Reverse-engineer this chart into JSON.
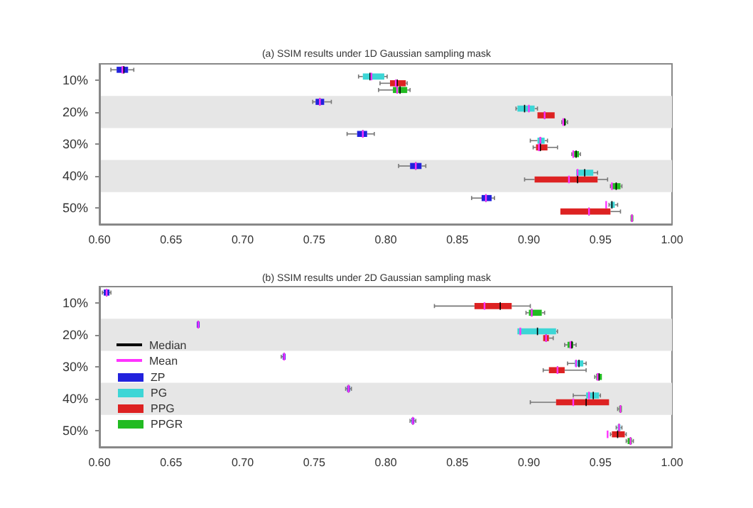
{
  "chart_data": [
    {
      "type": "box",
      "title": "(a) SSIM results under 1D Gaussian sampling mask",
      "orientation": "horizontal",
      "categories": [
        "10%",
        "20%",
        "30%",
        "40%",
        "50%"
      ],
      "xlim": [
        0.6,
        1.0
      ],
      "xticks": [
        {
          "value": 0.6,
          "label": "0.60"
        },
        {
          "value": 0.65,
          "label": "0.65"
        },
        {
          "value": 0.7,
          "label": "0.70"
        },
        {
          "value": 0.75,
          "label": "0.75"
        },
        {
          "value": 0.8,
          "label": "0.80"
        },
        {
          "value": 0.85,
          "label": "0.85"
        },
        {
          "value": 0.9,
          "label": "0.90"
        },
        {
          "value": 0.95,
          "label": "0.95"
        },
        {
          "value": 1.0,
          "label": "1.00"
        }
      ],
      "grid": false,
      "legend": false,
      "bands": [
        {
          "axis": "y",
          "from": "20%",
          "to": "20%",
          "color": "#e6e6e6"
        },
        {
          "axis": "y",
          "from": "40%",
          "to": "40%",
          "color": "#e6e6e6"
        }
      ],
      "series": [
        {
          "color": "#2222dd",
          "boxes": [
            {
              "low": 0.608,
              "q1": 0.612,
              "median": 0.617,
              "q3": 0.62,
              "high": 0.624,
              "mean": 0.616
            },
            {
              "low": 0.749,
              "q1": 0.751,
              "median": 0.754,
              "q3": 0.757,
              "high": 0.762,
              "mean": 0.754
            },
            {
              "low": 0.773,
              "q1": 0.78,
              "median": 0.784,
              "q3": 0.787,
              "high": 0.792,
              "mean": 0.784
            },
            {
              "low": 0.809,
              "q1": 0.817,
              "median": 0.821,
              "q3": 0.825,
              "high": 0.828,
              "mean": 0.821
            },
            {
              "low": 0.86,
              "q1": 0.867,
              "median": 0.87,
              "q3": 0.874,
              "high": 0.876,
              "mean": 0.87
            }
          ]
        },
        {
          "color": "#3dd6d6",
          "boxes": [
            {
              "low": 0.781,
              "q1": 0.784,
              "median": 0.789,
              "q3": 0.799,
              "high": 0.801,
              "mean": 0.79
            },
            {
              "low": 0.891,
              "q1": 0.892,
              "median": 0.897,
              "q3": 0.904,
              "high": 0.906,
              "mean": 0.9
            },
            {
              "low": 0.901,
              "q1": 0.906,
              "median": 0.908,
              "q3": 0.911,
              "high": 0.913,
              "mean": 0.908
            },
            {
              "low": 0.933,
              "q1": 0.933,
              "median": 0.939,
              "q3": 0.945,
              "high": 0.948,
              "mean": 0.934
            },
            {
              "low": 0.956,
              "q1": 0.957,
              "median": 0.958,
              "q3": 0.96,
              "high": 0.962,
              "mean": 0.954
            }
          ]
        },
        {
          "color": "#dd2222",
          "boxes": [
            {
              "low": 0.796,
              "q1": 0.803,
              "median": 0.808,
              "q3": 0.814,
              "high": 0.815,
              "mean": 0.807
            },
            {
              "low": 0.906,
              "q1": 0.906,
              "median": 0.911,
              "q3": 0.918,
              "high": 0.918,
              "mean": 0.911
            },
            {
              "low": 0.903,
              "q1": 0.905,
              "median": 0.908,
              "q3": 0.913,
              "high": 0.92,
              "mean": 0.907
            },
            {
              "low": 0.897,
              "q1": 0.904,
              "median": 0.934,
              "q3": 0.948,
              "high": 0.955,
              "mean": 0.928
            },
            {
              "low": 0.922,
              "q1": 0.922,
              "median": 0.942,
              "q3": 0.957,
              "high": 0.964,
              "mean": 0.942
            }
          ]
        },
        {
          "color": "#22bb22",
          "boxes": [
            {
              "low": 0.795,
              "q1": 0.805,
              "median": 0.81,
              "q3": 0.815,
              "high": 0.817,
              "mean": 0.808
            },
            {
              "low": 0.923,
              "q1": 0.924,
              "median": 0.925,
              "q3": 0.926,
              "high": 0.927,
              "mean": 0.924
            },
            {
              "low": 0.93,
              "q1": 0.931,
              "median": 0.933,
              "q3": 0.935,
              "high": 0.936,
              "mean": 0.931
            },
            {
              "low": 0.957,
              "q1": 0.958,
              "median": 0.961,
              "q3": 0.964,
              "high": 0.965,
              "mean": 0.958
            },
            {
              "low": 0.971,
              "q1": 0.971,
              "median": 0.972,
              "q3": 0.973,
              "high": 0.973,
              "mean": 0.972
            }
          ]
        }
      ]
    },
    {
      "type": "box",
      "title": "(b) SSIM results under 2D Gaussian sampling mask",
      "orientation": "horizontal",
      "categories": [
        "10%",
        "20%",
        "30%",
        "40%",
        "50%"
      ],
      "xlim": [
        0.6,
        1.0
      ],
      "xticks": [
        {
          "value": 0.6,
          "label": "0.60"
        },
        {
          "value": 0.65,
          "label": "0.65"
        },
        {
          "value": 0.7,
          "label": "0.70"
        },
        {
          "value": 0.75,
          "label": "0.75"
        },
        {
          "value": 0.8,
          "label": "0.80"
        },
        {
          "value": 0.85,
          "label": "0.85"
        },
        {
          "value": 0.9,
          "label": "0.90"
        },
        {
          "value": 0.95,
          "label": "0.95"
        },
        {
          "value": 1.0,
          "label": "1.00"
        }
      ],
      "grid": false,
      "legend": "bottom left",
      "annotations": [
        "Median",
        "Mean"
      ],
      "bands": [
        {
          "axis": "y",
          "from": "20%",
          "to": "20%",
          "color": "#e6e6e6"
        },
        {
          "axis": "y",
          "from": "40%",
          "to": "40%",
          "color": "#e6e6e6"
        }
      ],
      "series": [
        {
          "name": "ZP",
          "color": "#2222dd",
          "boxes": [
            {
              "low": 0.602,
              "q1": 0.603,
              "median": 0.605,
              "q3": 0.607,
              "high": 0.608,
              "mean": 0.605
            },
            {
              "low": 0.668,
              "q1": 0.668,
              "median": 0.669,
              "q3": 0.67,
              "high": 0.67,
              "mean": 0.669
            },
            {
              "low": 0.727,
              "q1": 0.728,
              "median": 0.729,
              "q3": 0.73,
              "high": 0.73,
              "mean": 0.729
            },
            {
              "low": 0.772,
              "q1": 0.773,
              "median": 0.774,
              "q3": 0.775,
              "high": 0.776,
              "mean": 0.774
            },
            {
              "low": 0.817,
              "q1": 0.818,
              "median": 0.819,
              "q3": 0.82,
              "high": 0.821,
              "mean": 0.819
            }
          ]
        },
        {
          "name": "PG",
          "color": "#3dd6d6",
          "boxes": [
            null,
            {
              "low": 0.892,
              "q1": 0.892,
              "median": 0.906,
              "q3": 0.919,
              "high": 0.92,
              "mean": 0.894
            },
            {
              "low": 0.927,
              "q1": 0.932,
              "median": 0.935,
              "q3": 0.938,
              "high": 0.94,
              "mean": 0.933
            },
            {
              "low": 0.931,
              "q1": 0.94,
              "median": 0.945,
              "q3": 0.949,
              "high": 0.95,
              "mean": 0.942
            },
            {
              "low": 0.961,
              "q1": 0.962,
              "median": 0.963,
              "q3": 0.964,
              "high": 0.965,
              "mean": 0.963
            }
          ]
        },
        {
          "name": "PPG",
          "color": "#dd2222",
          "boxes": [
            {
              "low": 0.834,
              "q1": 0.862,
              "median": 0.88,
              "q3": 0.888,
              "high": 0.901,
              "mean": 0.869
            },
            {
              "low": 0.91,
              "q1": 0.91,
              "median": 0.912,
              "q3": 0.914,
              "high": 0.917,
              "mean": 0.912
            },
            {
              "low": 0.91,
              "q1": 0.914,
              "median": 0.92,
              "q3": 0.925,
              "high": 0.94,
              "mean": 0.92
            },
            {
              "low": 0.901,
              "q1": 0.919,
              "median": 0.94,
              "q3": 0.956,
              "high": 0.956,
              "mean": 0.931
            },
            {
              "low": 0.957,
              "q1": 0.958,
              "median": 0.962,
              "q3": 0.967,
              "high": 0.968,
              "mean": 0.955
            }
          ]
        },
        {
          "name": "PPGR",
          "color": "#22bb22",
          "boxes": [
            {
              "low": 0.898,
              "q1": 0.9,
              "median": 0.902,
              "q3": 0.909,
              "high": 0.911,
              "mean": 0.902
            },
            {
              "low": 0.925,
              "q1": 0.927,
              "median": 0.93,
              "q3": 0.931,
              "high": 0.933,
              "mean": 0.929
            },
            {
              "low": 0.946,
              "q1": 0.947,
              "median": 0.949,
              "q3": 0.951,
              "high": 0.951,
              "mean": 0.948
            },
            {
              "low": 0.962,
              "q1": 0.963,
              "median": 0.964,
              "q3": 0.965,
              "high": 0.965,
              "mean": 0.964
            },
            {
              "low": 0.968,
              "q1": 0.969,
              "median": 0.971,
              "q3": 0.972,
              "high": 0.973,
              "mean": 0.971
            }
          ]
        }
      ]
    }
  ]
}
